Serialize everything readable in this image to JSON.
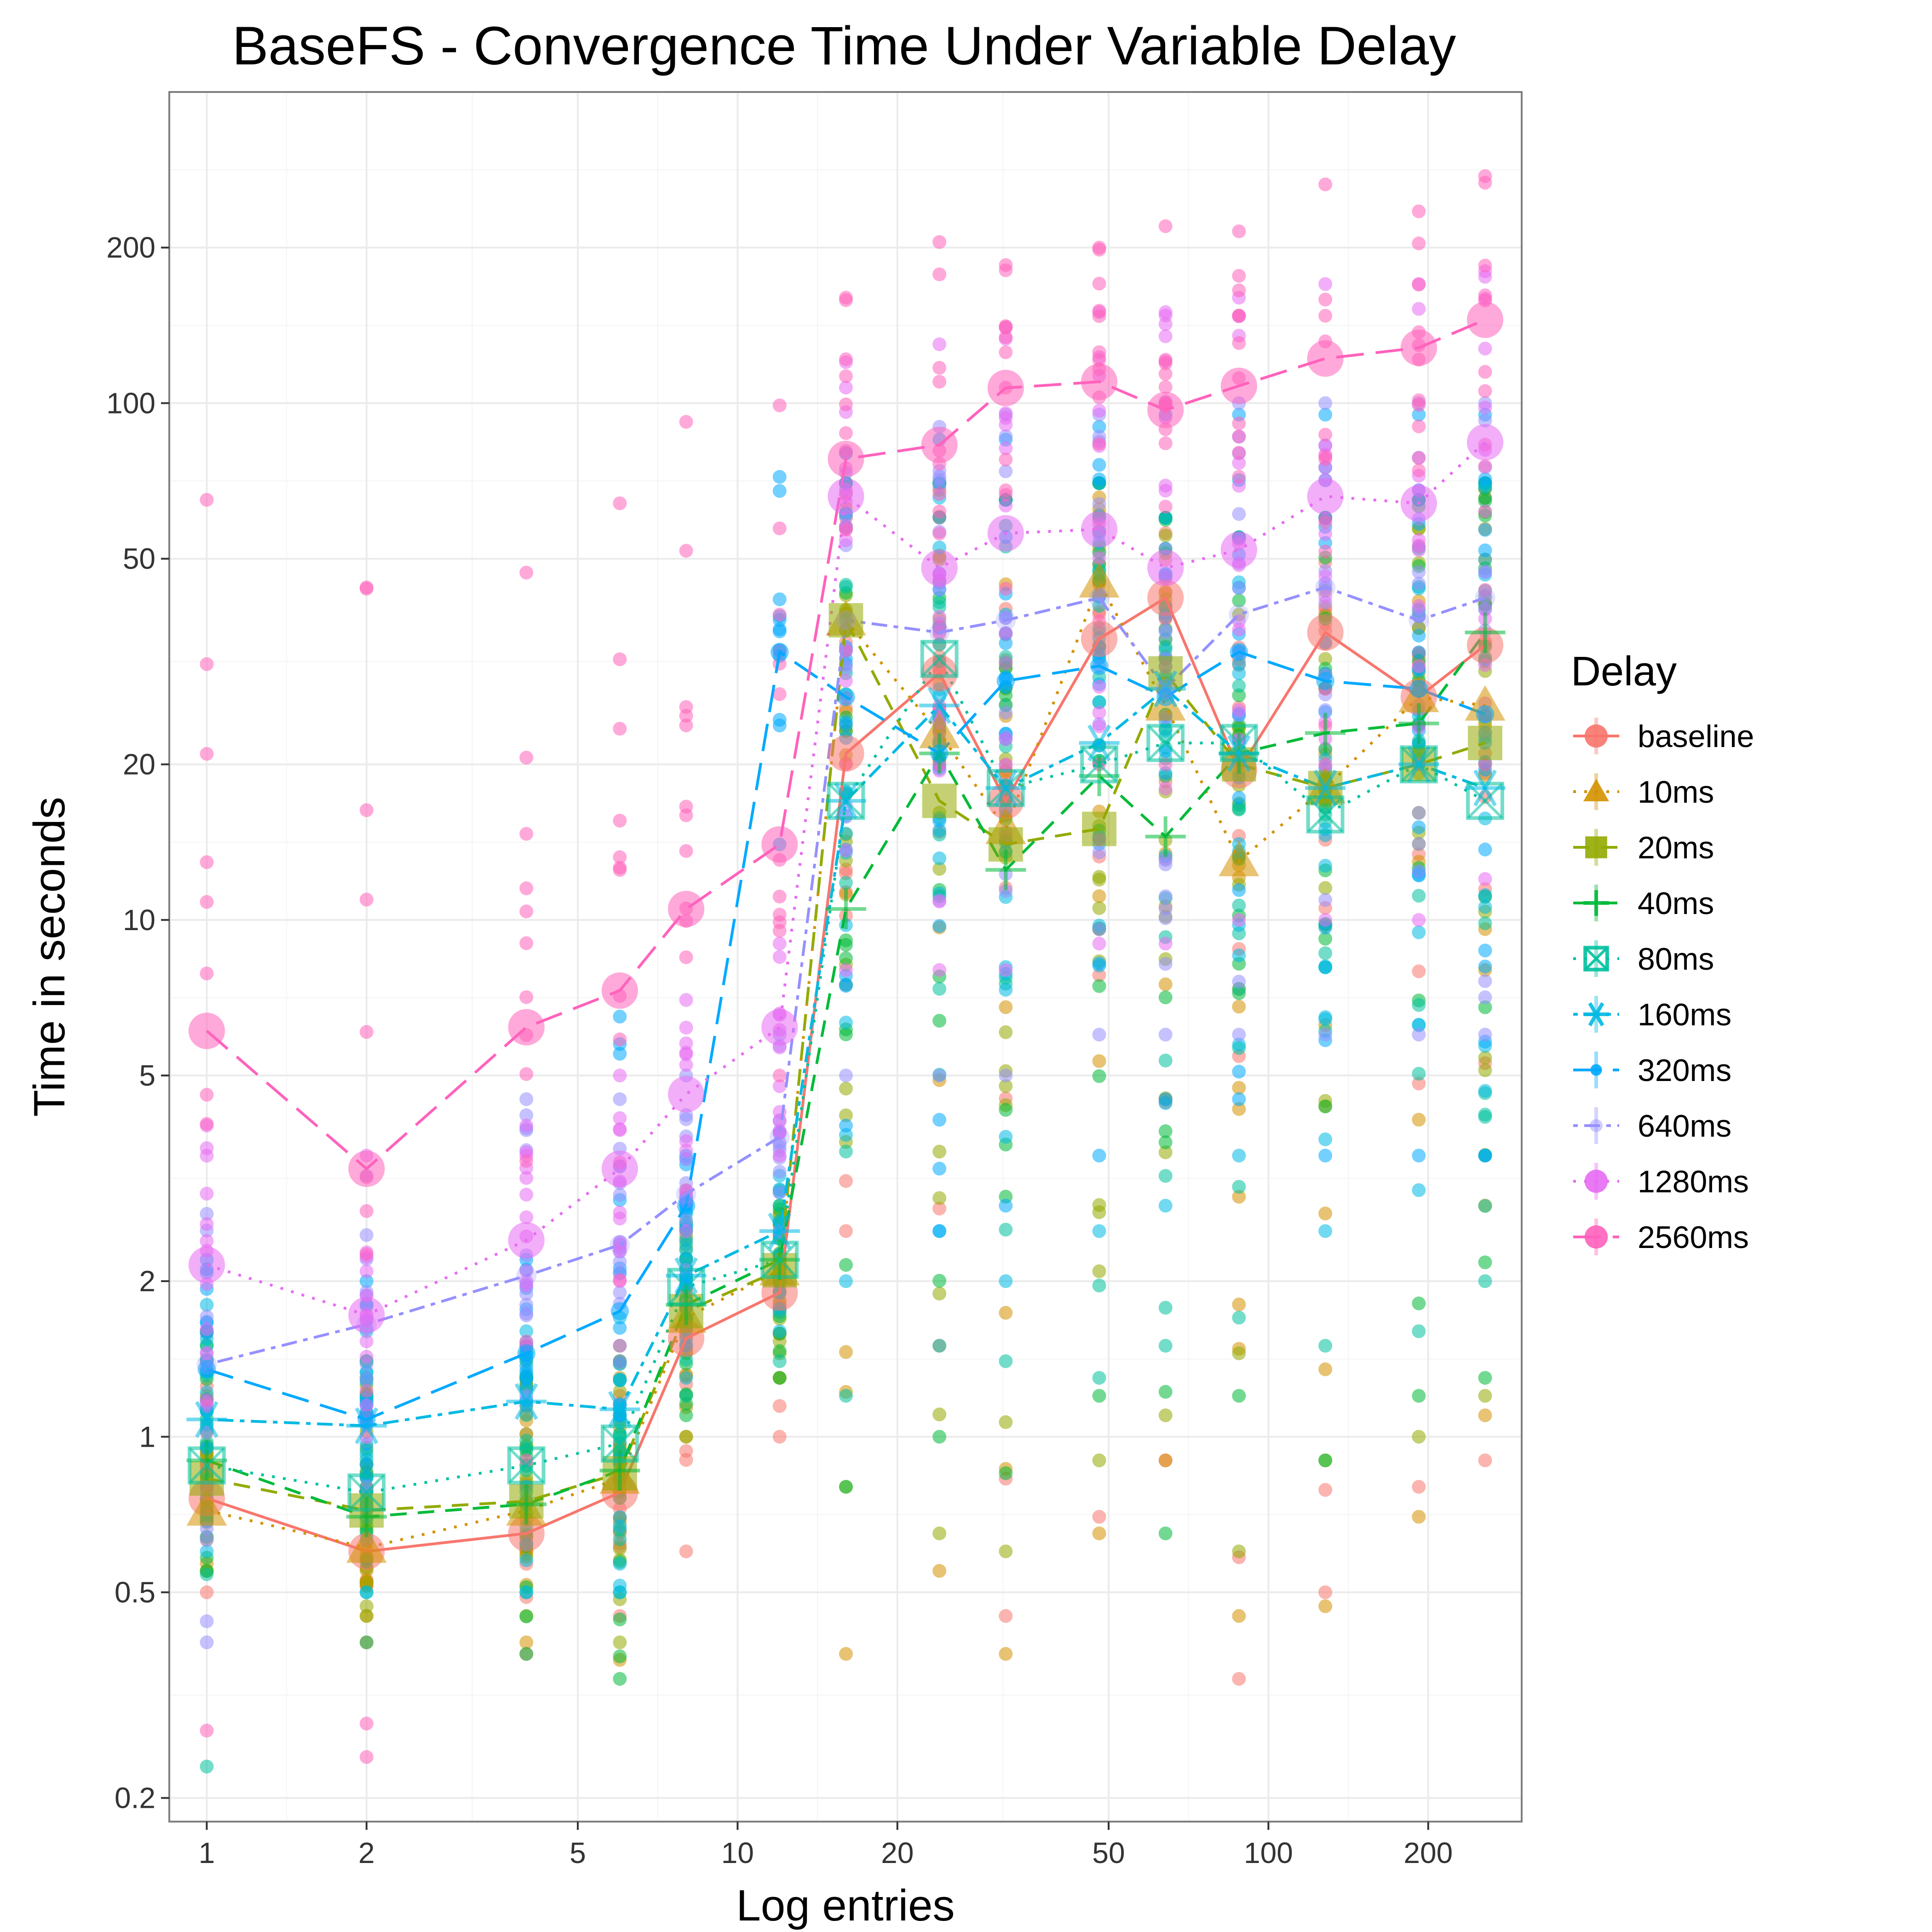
{
  "chart_data": {
    "type": "scatter",
    "title": "BaseFS - Convergence Time Under Variable Delay",
    "xlabel": "Log entries",
    "ylabel": "Time in seconds",
    "x_scale": "log10",
    "y_scale": "log10",
    "xlim": [
      0.85,
      300
    ],
    "ylim": [
      0.18,
      400
    ],
    "grid": true,
    "x_ticks": [
      1,
      2,
      5,
      10,
      20,
      50,
      100,
      200
    ],
    "y_ticks": [
      0.2,
      0.5,
      1,
      2,
      5,
      10,
      20,
      50,
      100,
      200
    ],
    "x_tick_labels": [
      "1",
      "2",
      "5",
      "10",
      "20",
      "50",
      "100",
      "200"
    ],
    "y_tick_labels": [
      "0.2",
      "0.5",
      "1",
      "2",
      "5",
      "10",
      "20",
      "50",
      "100",
      "200"
    ],
    "legend": {
      "title": "Delay",
      "placement": "right"
    },
    "x": [
      1,
      2,
      4,
      6,
      8,
      12,
      16,
      24,
      32,
      48,
      64,
      88,
      128,
      192,
      256
    ],
    "series": [
      {
        "name": "baseline",
        "color": "#F8766D",
        "dash": "solid",
        "marker": "circle",
        "mean": [
          0.76,
          0.6,
          0.65,
          0.78,
          1.55,
          1.9,
          21,
          30,
          17,
          35,
          42,
          19.5,
          36,
          27,
          34
        ],
        "range": [
          [
            0.5,
            1.6
          ],
          [
            0.4,
            1.1
          ],
          [
            0.38,
            1.3
          ],
          [
            0.45,
            1.2
          ],
          [
            0.6,
            2.2
          ],
          [
            1.0,
            2.6
          ],
          [
            2.5,
            60
          ],
          [
            1.5,
            60
          ],
          [
            0.45,
            40
          ],
          [
            0.7,
            60
          ],
          [
            0.9,
            60
          ],
          [
            0.34,
            55
          ],
          [
            0.5,
            60
          ],
          [
            0.8,
            65
          ],
          [
            0.9,
            70
          ]
        ]
      },
      {
        "name": "10ms",
        "color": "#D39200",
        "dash": "dotted",
        "marker": "triangle",
        "mean": [
          0.72,
          0.61,
          0.72,
          0.83,
          1.7,
          2.1,
          38,
          23,
          15,
          45,
          26,
          13,
          18,
          27,
          26
        ],
        "range": [
          [
            0.55,
            1.2
          ],
          [
            0.45,
            1.2
          ],
          [
            0.4,
            1.3
          ],
          [
            0.37,
            1.3
          ],
          [
            1.0,
            2.4
          ],
          [
            1.3,
            2.7
          ],
          [
            0.38,
            70
          ],
          [
            0.55,
            70
          ],
          [
            0.38,
            65
          ],
          [
            0.65,
            70
          ],
          [
            0.9,
            60
          ],
          [
            0.45,
            55
          ],
          [
            0.47,
            60
          ],
          [
            0.7,
            65
          ],
          [
            1.1,
            70
          ]
        ]
      },
      {
        "name": "20ms",
        "color": "#93AA00",
        "dash": "dashed",
        "marker": "square",
        "mean": [
          0.83,
          0.72,
          0.75,
          0.85,
          1.75,
          2.1,
          38,
          17,
          14,
          15,
          30,
          20,
          18,
          20,
          22
        ],
        "range": [
          [
            0.55,
            1.4
          ],
          [
            0.45,
            1.3
          ],
          [
            0.45,
            1.3
          ],
          [
            0.4,
            1.4
          ],
          [
            1.0,
            2.5
          ],
          [
            1.3,
            2.7
          ],
          [
            0.8,
            70
          ],
          [
            0.65,
            70
          ],
          [
            0.6,
            65
          ],
          [
            0.9,
            70
          ],
          [
            1.1,
            60
          ],
          [
            0.6,
            55
          ],
          [
            0.9,
            60
          ],
          [
            1.0,
            65
          ],
          [
            1.2,
            70
          ]
        ]
      },
      {
        "name": "40ms",
        "color": "#00BA38",
        "dash": "dashed",
        "marker": "cross",
        "mean": [
          0.9,
          0.7,
          0.74,
          0.86,
          1.8,
          2.2,
          10.5,
          21,
          12.5,
          19,
          14.5,
          21,
          23,
          24,
          36
        ],
        "range": [
          [
            0.55,
            1.5
          ],
          [
            0.4,
            1.4
          ],
          [
            0.38,
            1.4
          ],
          [
            0.34,
            1.4
          ],
          [
            1.1,
            2.6
          ],
          [
            1.3,
            2.8
          ],
          [
            0.8,
            70
          ],
          [
            1.0,
            70
          ],
          [
            0.85,
            65
          ],
          [
            1.2,
            70
          ],
          [
            0.65,
            60
          ],
          [
            1.2,
            55
          ],
          [
            0.9,
            60
          ],
          [
            1.2,
            65
          ],
          [
            1.3,
            70
          ]
        ]
      },
      {
        "name": "80ms",
        "color": "#00C19F",
        "dash": "dotted",
        "marker": "square-x",
        "mean": [
          0.88,
          0.78,
          0.88,
          0.97,
          1.95,
          2.2,
          17,
          32,
          18,
          20,
          22,
          22,
          16,
          20,
          17
        ],
        "range": [
          [
            0.23,
            1.6
          ],
          [
            0.5,
            1.4
          ],
          [
            0.5,
            1.5
          ],
          [
            0.5,
            1.5
          ],
          [
            1.2,
            2.7
          ],
          [
            1.4,
            3.0
          ],
          [
            1.2,
            70
          ],
          [
            1.5,
            70
          ],
          [
            1.4,
            65
          ],
          [
            1.3,
            70
          ],
          [
            1.5,
            60
          ],
          [
            1.7,
            55
          ],
          [
            1.5,
            60
          ],
          [
            1.6,
            65
          ],
          [
            2.0,
            70
          ]
        ]
      },
      {
        "name": "160ms",
        "color": "#00B9E3",
        "dash": "dashdot",
        "marker": "asterisk",
        "mean": [
          1.08,
          1.05,
          1.17,
          1.13,
          2.05,
          2.5,
          17,
          26,
          18,
          22,
          28,
          21,
          18,
          20,
          18
        ],
        "range": [
          [
            0.6,
            1.8
          ],
          [
            0.5,
            1.6
          ],
          [
            0.5,
            1.6
          ],
          [
            0.5,
            1.7
          ],
          [
            1.3,
            2.9
          ],
          [
            1.6,
            3.2
          ],
          [
            2.0,
            70
          ],
          [
            2.5,
            70
          ],
          [
            2.0,
            65
          ],
          [
            2.5,
            70
          ],
          [
            2.8,
            60
          ],
          [
            3.5,
            55
          ],
          [
            2.5,
            60
          ],
          [
            3.0,
            65
          ],
          [
            3.5,
            70
          ]
        ]
      },
      {
        "name": "320ms",
        "color": "#00A9FF",
        "dash": "longdash",
        "marker": "circle-small",
        "mean": [
          1.35,
          1.08,
          1.45,
          1.75,
          2.8,
          33,
          27,
          21,
          29,
          31,
          27,
          33,
          29,
          28,
          25
        ],
        "range": [
          [
            0.8,
            2.2
          ],
          [
            0.7,
            2.0
          ],
          [
            0.8,
            2.2
          ],
          [
            0.9,
            6.5
          ],
          [
            1.5,
            3.5
          ],
          [
            14,
            72
          ],
          [
            4,
            80
          ],
          [
            2.5,
            85
          ],
          [
            2.8,
            85
          ],
          [
            3.5,
            90
          ],
          [
            4.5,
            95
          ],
          [
            4.5,
            95
          ],
          [
            3.5,
            95
          ],
          [
            3.5,
            95
          ],
          [
            3.5,
            95
          ]
        ]
      },
      {
        "name": "640ms",
        "color": "#9590FF",
        "dash": "dashdot",
        "marker": "circle-faint",
        "mean": [
          1.38,
          1.65,
          2.05,
          2.35,
          2.95,
          3.8,
          38,
          36,
          38,
          42,
          28,
          39,
          44,
          38,
          42
        ],
        "range": [
          [
            0.4,
            2.7
          ],
          [
            0.8,
            3.2
          ],
          [
            1.2,
            4.5
          ],
          [
            1.4,
            4.5
          ],
          [
            1.8,
            5
          ],
          [
            2.5,
            6
          ],
          [
            5,
            80
          ],
          [
            5,
            90
          ],
          [
            5,
            95
          ],
          [
            6,
            95
          ],
          [
            6,
            100
          ],
          [
            6,
            100
          ],
          [
            6,
            100
          ],
          [
            6,
            100
          ],
          [
            6,
            100
          ]
        ]
      },
      {
        "name": "1280ms",
        "color": "#E76BF3",
        "dash": "dotted",
        "marker": "circle",
        "mean": [
          2.15,
          1.72,
          2.4,
          3.3,
          4.6,
          6.2,
          66,
          48,
          56,
          57,
          48,
          52,
          66,
          64,
          84
        ],
        "range": [
          [
            0.8,
            4
          ],
          [
            1.0,
            3.5
          ],
          [
            1.5,
            4
          ],
          [
            2.0,
            5
          ],
          [
            2.5,
            7
          ],
          [
            3.5,
            9
          ],
          [
            8,
            120
          ],
          [
            8,
            130
          ],
          [
            8,
            140
          ],
          [
            9,
            150
          ],
          [
            9,
            150
          ],
          [
            10,
            160
          ],
          [
            10,
            170
          ],
          [
            10,
            170
          ],
          [
            12,
            180
          ]
        ]
      },
      {
        "name": "2560ms",
        "color": "#FF62BC",
        "dash": "longdash",
        "marker": "circle",
        "mean": [
          6.1,
          3.3,
          6.2,
          7.3,
          10.5,
          14,
          78,
          83,
          107,
          110,
          97,
          108,
          122,
          128,
          145
        ],
        "range": [
          [
            0.27,
            65
          ],
          [
            0.24,
            44
          ],
          [
            0.9,
            47
          ],
          [
            1.5,
            64
          ],
          [
            3,
            92
          ],
          [
            5,
            99
          ],
          [
            20,
            160
          ],
          [
            20,
            205
          ],
          [
            20,
            185
          ],
          [
            20,
            200
          ],
          [
            20,
            220
          ],
          [
            20,
            215
          ],
          [
            20,
            265
          ],
          [
            20,
            235
          ],
          [
            20,
            275
          ]
        ]
      }
    ]
  }
}
